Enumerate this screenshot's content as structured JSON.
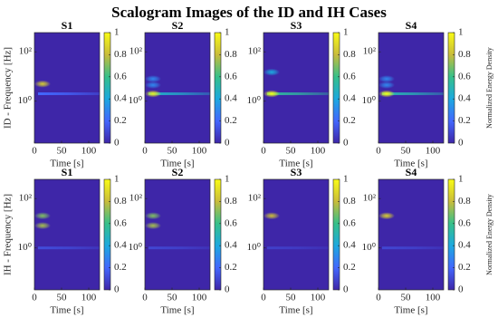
{
  "title": "Scalogram Images of the ID and IH Cases",
  "colormap": [
    "#3e26a8",
    "#4367fd",
    "#1ca9df",
    "#36c08a",
    "#c9bc3b",
    "#f9fb15"
  ],
  "chart_data": [
    {
      "type": "heatmap",
      "title": "S1",
      "xlabel": "Time [s]",
      "ylabel": "ID - Frequency [Hz]",
      "xlim": [
        0,
        120
      ],
      "xticks": [
        0,
        50,
        100
      ],
      "ylim": [
        0.02,
        600
      ],
      "yscale": "log",
      "yticks": [
        {
          "value": 1,
          "label": "10⁰"
        },
        {
          "value": 100,
          "label": "10²"
        }
      ],
      "clim": [
        0,
        1
      ],
      "cticks": [
        0,
        0.2,
        0.4,
        0.6,
        0.8,
        1
      ],
      "hotspots": {
        "time": [
          15
        ],
        "freq": [
          5
        ],
        "values": [
          0.85
        ]
      },
      "bands": {
        "freq": [
          2
        ],
        "values": [
          0.2
        ]
      }
    },
    {
      "type": "heatmap",
      "title": "S2",
      "xlabel": "Time [s]",
      "xlim": [
        0,
        120
      ],
      "xticks": [
        0,
        50,
        100
      ],
      "ylim": [
        0.02,
        600
      ],
      "yscale": "log",
      "yticks": [
        {
          "value": 1,
          "label": "10⁰"
        },
        {
          "value": 100,
          "label": "10²"
        }
      ],
      "clim": [
        0,
        1
      ],
      "cticks": [
        0,
        0.2,
        0.4,
        0.6,
        0.8,
        1
      ],
      "hotspots": {
        "time": [
          15,
          15,
          15
        ],
        "freq": [
          2,
          8,
          4.5
        ],
        "values": [
          0.95,
          0.3,
          0.3
        ]
      },
      "bands": {
        "freq": [
          2
        ],
        "values": [
          0.45
        ]
      }
    },
    {
      "type": "heatmap",
      "title": "S3",
      "xlabel": "Time [s]",
      "xlim": [
        0,
        120
      ],
      "xticks": [
        0,
        50,
        100
      ],
      "ylim": [
        0.02,
        600
      ],
      "yscale": "log",
      "yticks": [
        {
          "value": 1,
          "label": "10⁰"
        },
        {
          "value": 100,
          "label": "10²"
        }
      ],
      "clim": [
        0,
        1
      ],
      "cticks": [
        0,
        0.2,
        0.4,
        0.6,
        0.8,
        1
      ],
      "hotspots": {
        "time": [
          15,
          15
        ],
        "freq": [
          2,
          15
        ],
        "values": [
          1,
          0.4
        ]
      },
      "bands": {
        "freq": [
          2
        ],
        "values": [
          0.55
        ]
      }
    },
    {
      "type": "heatmap",
      "title": "S4",
      "xlabel": "Time [s]",
      "xlim": [
        0,
        120
      ],
      "xticks": [
        0,
        50,
        100
      ],
      "ylim": [
        0.02,
        600
      ],
      "yscale": "log",
      "yticks": [
        {
          "value": 1,
          "label": "10⁰"
        },
        {
          "value": 100,
          "label": "10²"
        }
      ],
      "clim": [
        0,
        1
      ],
      "cticks": [
        0,
        0.2,
        0.4,
        0.6,
        0.8,
        1
      ],
      "clabel": "Normalized Energy Density",
      "hotspots": {
        "time": [
          15,
          15,
          15
        ],
        "freq": [
          2,
          8,
          4.5
        ],
        "values": [
          1,
          0.3,
          0.3
        ]
      },
      "bands": {
        "freq": [
          2
        ],
        "values": [
          0.5
        ]
      }
    },
    {
      "type": "heatmap",
      "title": "S1",
      "xlabel": "Time [s]",
      "ylabel": "IH - Frequency [Hz]",
      "xlim": [
        0,
        120
      ],
      "xticks": [
        0,
        50,
        100
      ],
      "ylim": [
        0.02,
        600
      ],
      "yscale": "log",
      "yticks": [
        {
          "value": 1,
          "label": "10⁰"
        },
        {
          "value": 100,
          "label": "10²"
        }
      ],
      "clim": [
        0,
        1
      ],
      "cticks": [
        0,
        0.2,
        0.4,
        0.6,
        0.8,
        1
      ],
      "hotspots": {
        "time": [
          15,
          15
        ],
        "freq": [
          20,
          8
        ],
        "values": [
          0.7,
          0.75
        ]
      },
      "bands": {
        "freq": [
          1
        ],
        "values": [
          0.12
        ]
      }
    },
    {
      "type": "heatmap",
      "title": "S2",
      "xlabel": "Time [s]",
      "xlim": [
        0,
        120
      ],
      "xticks": [
        0,
        50,
        100
      ],
      "ylim": [
        0.02,
        600
      ],
      "yscale": "log",
      "yticks": [
        {
          "value": 1,
          "label": "10⁰"
        },
        {
          "value": 100,
          "label": "10²"
        }
      ],
      "clim": [
        0,
        1
      ],
      "cticks": [
        0,
        0.2,
        0.4,
        0.6,
        0.8,
        1
      ],
      "hotspots": {
        "time": [
          15,
          15
        ],
        "freq": [
          20,
          8
        ],
        "values": [
          0.7,
          0.75
        ]
      },
      "bands": {
        "freq": [
          1
        ],
        "values": [
          0.1
        ]
      }
    },
    {
      "type": "heatmap",
      "title": "S3",
      "xlabel": "Time [s]",
      "xlim": [
        0,
        120
      ],
      "xticks": [
        0,
        50,
        100
      ],
      "ylim": [
        0.02,
        600
      ],
      "yscale": "log",
      "yticks": [
        {
          "value": 1,
          "label": "10⁰"
        },
        {
          "value": 100,
          "label": "10²"
        }
      ],
      "clim": [
        0,
        1
      ],
      "cticks": [
        0,
        0.2,
        0.4,
        0.6,
        0.8,
        1
      ],
      "hotspots": {
        "time": [
          15
        ],
        "freq": [
          20
        ],
        "values": [
          0.8
        ]
      },
      "bands": {
        "freq": [
          1
        ],
        "values": [
          0.08
        ]
      }
    },
    {
      "type": "heatmap",
      "title": "S4",
      "xlabel": "Time [s]",
      "xlim": [
        0,
        120
      ],
      "xticks": [
        0,
        50,
        100
      ],
      "ylim": [
        0.02,
        600
      ],
      "yscale": "log",
      "yticks": [
        {
          "value": 1,
          "label": "10⁰"
        },
        {
          "value": 100,
          "label": "10²"
        }
      ],
      "clim": [
        0,
        1
      ],
      "cticks": [
        0,
        0.2,
        0.4,
        0.6,
        0.8,
        1
      ],
      "clabel": "Normalized Energy Density",
      "hotspots": {
        "time": [
          15
        ],
        "freq": [
          20
        ],
        "values": [
          0.85
        ]
      },
      "bands": {
        "freq": [
          1
        ],
        "values": [
          0.1
        ]
      }
    }
  ]
}
